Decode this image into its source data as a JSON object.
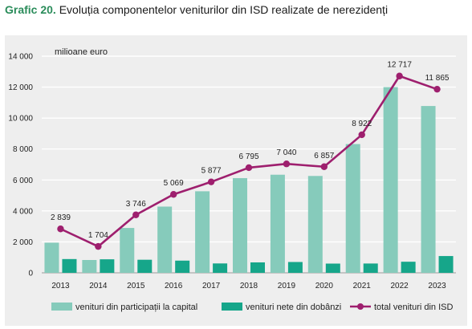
{
  "title_prefix": "Grafic 20.",
  "title_text": "Evoluția componentelor veniturilor din ISD realizate de nerezidenți",
  "colors": {
    "title_prefix": "#2a8c5a",
    "panel_bg": "#eeeeee",
    "participation": "#86cbbb",
    "interest": "#16a68a",
    "total_line": "#9e1f6e"
  },
  "chart_data": {
    "type": "bar",
    "unit_label": "milioane euro",
    "categories": [
      "2013",
      "2014",
      "2015",
      "2016",
      "2017",
      "2018",
      "2019",
      "2020",
      "2021",
      "2022",
      "2023"
    ],
    "ylim": [
      0,
      14000
    ],
    "yticks": [
      0,
      2000,
      4000,
      6000,
      8000,
      10000,
      12000,
      14000
    ],
    "ytick_labels": [
      "0",
      "2 000",
      "4 000",
      "6 000",
      "8 000",
      "10 000",
      "12 000",
      "14 000"
    ],
    "grid": true,
    "legend_position": "bottom",
    "series": [
      {
        "name": "venituri din participații la capital",
        "type": "bar",
        "values": [
          1950,
          830,
          2900,
          4280,
          5270,
          6120,
          6340,
          6260,
          8320,
          12000,
          10780
        ]
      },
      {
        "name": "venituri nete din dobânzi",
        "type": "bar",
        "values": [
          890,
          874,
          846,
          789,
          607,
          675,
          700,
          597,
          602,
          717,
          1085
        ]
      },
      {
        "name": "total venituri din ISD",
        "type": "line",
        "values": [
          2839,
          1704,
          3746,
          5069,
          5877,
          6795,
          7040,
          6857,
          8922,
          12717,
          11865
        ],
        "labels": [
          "2 839",
          "1 704",
          "3 746",
          "5 069",
          "5 877",
          "6 795",
          "7 040",
          "6 857",
          "8 922",
          "12 717",
          "11 865"
        ]
      }
    ]
  }
}
